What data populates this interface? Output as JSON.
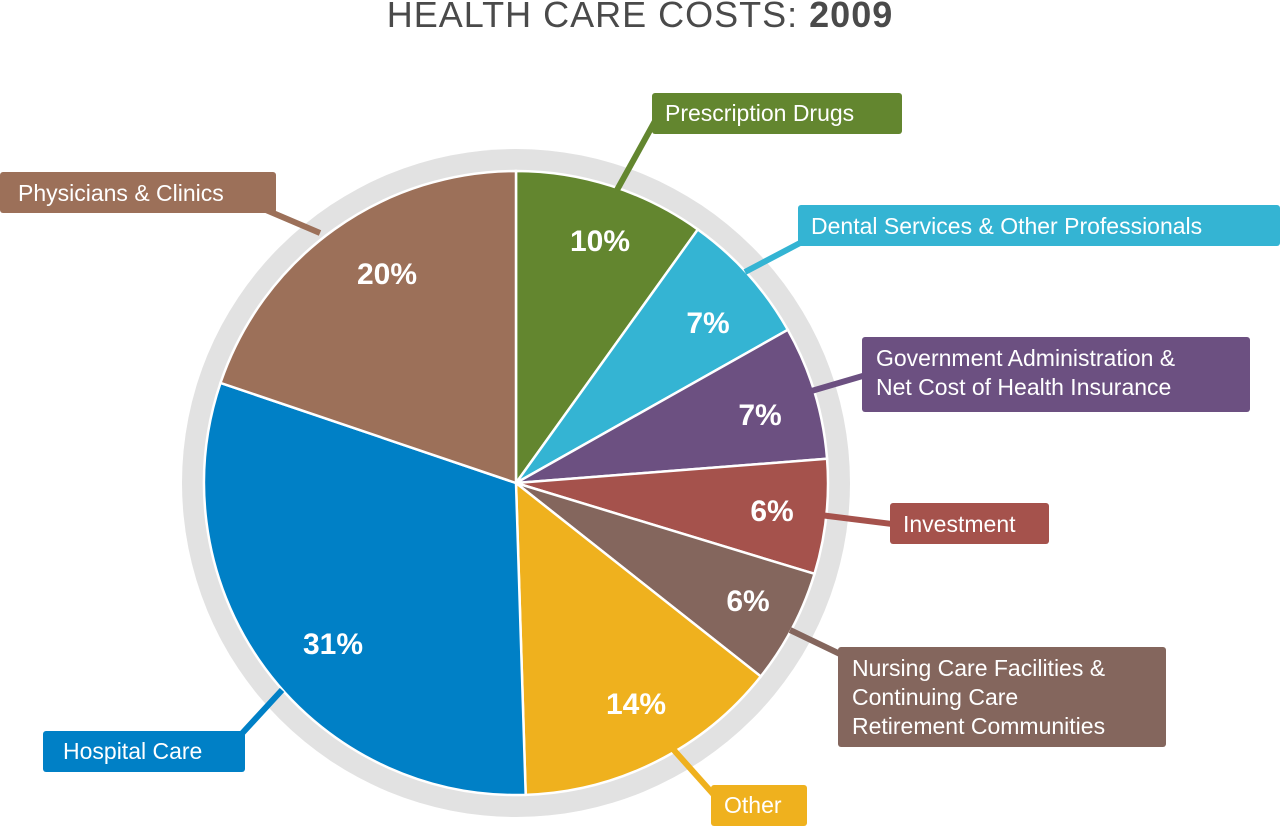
{
  "title": {
    "text": "HEALTH CARE COSTS:",
    "year": "2009"
  },
  "chart_data": {
    "type": "pie",
    "title": "HEALTH CARE COSTS: 2009",
    "unit": "%",
    "slices": [
      {
        "label": "Prescription Drugs",
        "value": 10,
        "pct_label": "10%",
        "color": "#63862f"
      },
      {
        "label": "Dental Services & Other Professionals",
        "value": 7,
        "pct_label": "7%",
        "color": "#34b4d3"
      },
      {
        "label": "Government Administration & Net Cost of Health Insurance",
        "value": 7,
        "pct_label": "7%",
        "color": "#6c5081"
      },
      {
        "label": "Investment",
        "value": 6,
        "pct_label": "6%",
        "color": "#a5524c"
      },
      {
        "label": "Nursing Care Facilities & Continuing Care Retirement Communities",
        "value": 6,
        "pct_label": "6%",
        "color": "#84665d"
      },
      {
        "label": "Other",
        "value": 14,
        "pct_label": "14%",
        "color": "#efb11e"
      },
      {
        "label": "Hospital Care",
        "value": 31,
        "pct_label": "31%",
        "color": "#0080c6"
      },
      {
        "label": "Physicians & Clinics",
        "value": 20,
        "pct_label": "20%",
        "color": "#9c7059"
      }
    ],
    "label_lines": [
      [
        "Prescription Drugs"
      ],
      [
        "Dental Services & Other Professionals"
      ],
      [
        "Government Administration &",
        "Net Cost of Health Insurance"
      ],
      [
        "Investment"
      ],
      [
        "Nursing Care Facilities &",
        "Continuing Care",
        "Retirement Communities"
      ],
      [
        "Other"
      ],
      [
        "Hospital Care"
      ],
      [
        "Physicians & Clinics"
      ]
    ],
    "start_angle_deg": 0,
    "direction": "clockwise",
    "ring_color": "#e2e2e2"
  }
}
